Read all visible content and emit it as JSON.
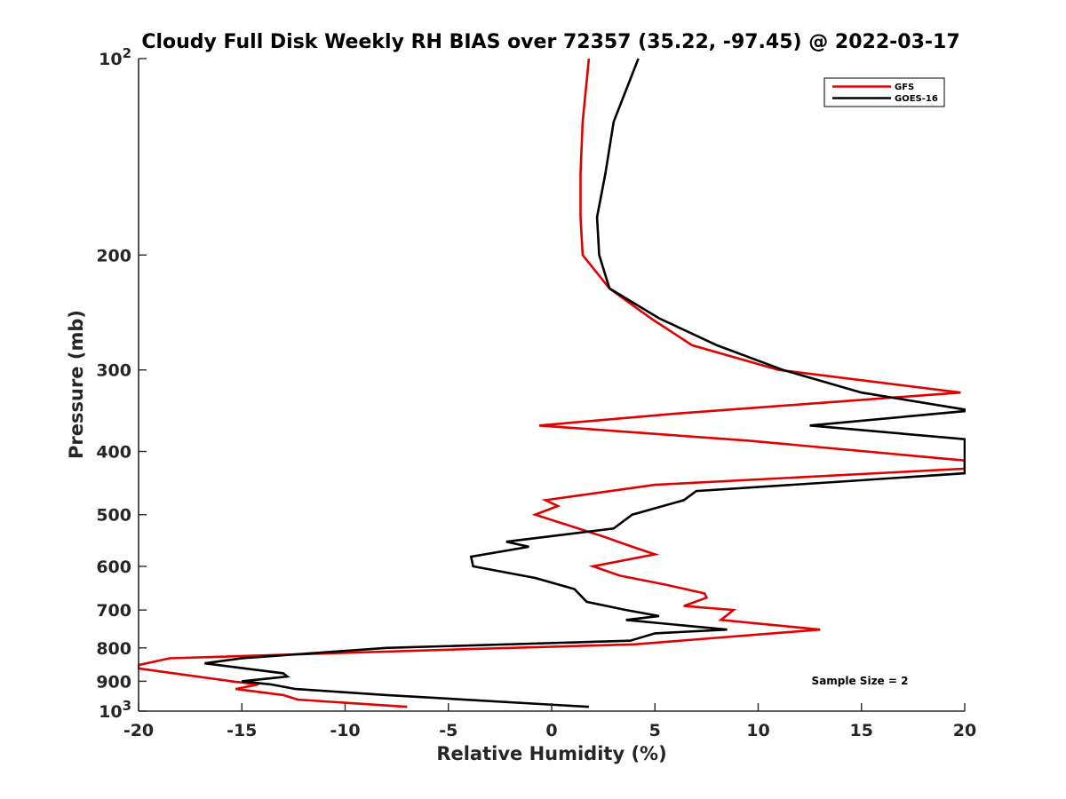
{
  "chart_data": {
    "type": "line",
    "title": "Cloudy Full Disk Weekly RH BIAS over 72357 (35.22, -97.45) @ 2022-03-17",
    "xlabel": "Relative Humidity (%)",
    "ylabel": "Pressure (mb)",
    "xlim": [
      -20,
      20
    ],
    "ylim": [
      100,
      1000
    ],
    "yscale": "log",
    "y_reversed": true,
    "grid": false,
    "legend_position": "top-right",
    "xticks": [
      "-20",
      "-15",
      "-10",
      "-5",
      "0",
      "5",
      "10",
      "15",
      "20"
    ],
    "xtick_values": [
      -20,
      -15,
      -10,
      -5,
      0,
      5,
      10,
      15,
      20
    ],
    "yticks": [
      {
        "value": 100,
        "base": "10",
        "exp": "2"
      },
      {
        "value": 200,
        "label": "200"
      },
      {
        "value": 300,
        "label": "300"
      },
      {
        "value": 400,
        "label": "400"
      },
      {
        "value": 500,
        "label": "500"
      },
      {
        "value": 600,
        "label": "600"
      },
      {
        "value": 700,
        "label": "700"
      },
      {
        "value": 800,
        "label": "800"
      },
      {
        "value": 900,
        "label": "900"
      },
      {
        "value": 1000,
        "base": "10",
        "exp": "3"
      }
    ],
    "annotation": "Sample Size = 2",
    "series": [
      {
        "name": "GFS",
        "color": "#e00000",
        "points": [
          [
            1.8,
            100
          ],
          [
            1.5,
            125
          ],
          [
            1.4,
            150
          ],
          [
            1.4,
            175
          ],
          [
            1.5,
            200
          ],
          [
            2.8,
            225
          ],
          [
            4.8,
            250
          ],
          [
            6.8,
            275
          ],
          [
            11.0,
            300
          ],
          [
            19.8,
            325
          ],
          [
            6.0,
            350
          ],
          [
            -0.6,
            365
          ],
          [
            9.5,
            385
          ],
          [
            20,
            413
          ],
          [
            20,
            425
          ],
          [
            5.0,
            450
          ],
          [
            -0.3,
            475
          ],
          [
            0.3,
            485
          ],
          [
            -0.8,
            500
          ],
          [
            2.5,
            540
          ],
          [
            3.9,
            560
          ],
          [
            5.0,
            575
          ],
          [
            2.0,
            600
          ],
          [
            3.3,
            620
          ],
          [
            5.5,
            640
          ],
          [
            7.4,
            660
          ],
          [
            7.5,
            670
          ],
          [
            6.4,
            690
          ],
          [
            8.8,
            700
          ],
          [
            8.2,
            725
          ],
          [
            13.0,
            750
          ],
          [
            4.0,
            790
          ],
          [
            -5.0,
            805
          ],
          [
            -18.5,
            830
          ],
          [
            -20.0,
            850
          ],
          [
            -20.0,
            860
          ],
          [
            -15.5,
            900
          ],
          [
            -14.2,
            910
          ],
          [
            -15.3,
            925
          ],
          [
            -13.0,
            945
          ],
          [
            -12.3,
            960
          ],
          [
            -7.0,
            985
          ]
        ]
      },
      {
        "name": "GOES-16",
        "color": "#000000",
        "points": [
          [
            4.2,
            100
          ],
          [
            3.0,
            125
          ],
          [
            2.6,
            150
          ],
          [
            2.2,
            175
          ],
          [
            2.3,
            200
          ],
          [
            2.8,
            225
          ],
          [
            5.2,
            250
          ],
          [
            8.0,
            275
          ],
          [
            11.2,
            300
          ],
          [
            15.0,
            325
          ],
          [
            20,
            345
          ],
          [
            20,
            347
          ],
          [
            12.5,
            365
          ],
          [
            20,
            383
          ],
          [
            20,
            385
          ],
          [
            20,
            390
          ],
          [
            20,
            395
          ],
          [
            20,
            415
          ],
          [
            20,
            425
          ],
          [
            20,
            432
          ],
          [
            14.0,
            445
          ],
          [
            7.0,
            460
          ],
          [
            6.4,
            475
          ],
          [
            3.9,
            500
          ],
          [
            3.0,
            525
          ],
          [
            -2.2,
            550
          ],
          [
            -1.1,
            560
          ],
          [
            -3.9,
            580
          ],
          [
            -3.8,
            600
          ],
          [
            -0.8,
            625
          ],
          [
            1.1,
            650
          ],
          [
            1.7,
            680
          ],
          [
            3.6,
            700
          ],
          [
            5.2,
            715
          ],
          [
            3.6,
            725
          ],
          [
            8.5,
            750
          ],
          [
            5.0,
            760
          ],
          [
            3.8,
            780
          ],
          [
            -8.0,
            800
          ],
          [
            -15.0,
            830
          ],
          [
            -16.8,
            845
          ],
          [
            -13.0,
            875
          ],
          [
            -12.8,
            885
          ],
          [
            -15.0,
            900
          ],
          [
            -13.6,
            910
          ],
          [
            -12.4,
            925
          ],
          [
            -8.0,
            945
          ],
          [
            1.8,
            985
          ]
        ]
      }
    ]
  }
}
